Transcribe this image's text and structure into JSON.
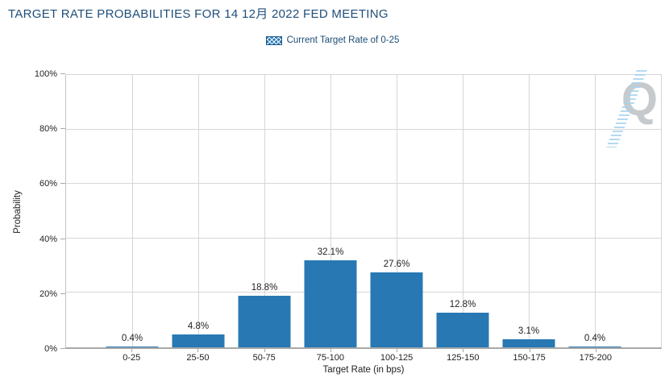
{
  "header": {
    "title": "TARGET RATE PROBABILITIES FOR 14 12月 2022 FED MEETING"
  },
  "legend": {
    "label": "Current Target Rate of 0-25",
    "swatch_style": "blue-crosshatch"
  },
  "chart_data": {
    "type": "bar",
    "title": "TARGET RATE PROBABILITIES FOR 14 12月 2022 FED MEETING",
    "categories": [
      "0-25",
      "25-50",
      "50-75",
      "75-100",
      "100-125",
      "125-150",
      "150-175",
      "175-200"
    ],
    "values": [
      0.4,
      4.8,
      18.8,
      32.1,
      27.6,
      12.8,
      3.1,
      0.4
    ],
    "value_labels": [
      "0.4%",
      "4.8%",
      "18.8%",
      "32.1%",
      "27.6%",
      "12.8%",
      "3.1%",
      "0.4%"
    ],
    "xlabel": "Target Rate (in bps)",
    "ylabel": "Probability",
    "ylim": [
      0,
      100
    ],
    "ytick_labels": [
      "0%",
      "20%",
      "40%",
      "60%",
      "80%",
      "100%"
    ],
    "ytick_values": [
      0,
      20,
      40,
      60,
      80,
      100
    ],
    "grid": "on",
    "legend_position": "top-center",
    "legend_entries": [
      "Current Target Rate of 0-25"
    ]
  },
  "watermark": {
    "letter": "Q"
  },
  "colors": {
    "bar": "#2878b4",
    "title_text": "#1f4e79",
    "grid": "#d6d6d6",
    "axis_line": "#a8a8a8",
    "tick_text": "#222222",
    "watermark_q": "#c7cacc",
    "watermark_swoosh": "#a7d3ec"
  }
}
